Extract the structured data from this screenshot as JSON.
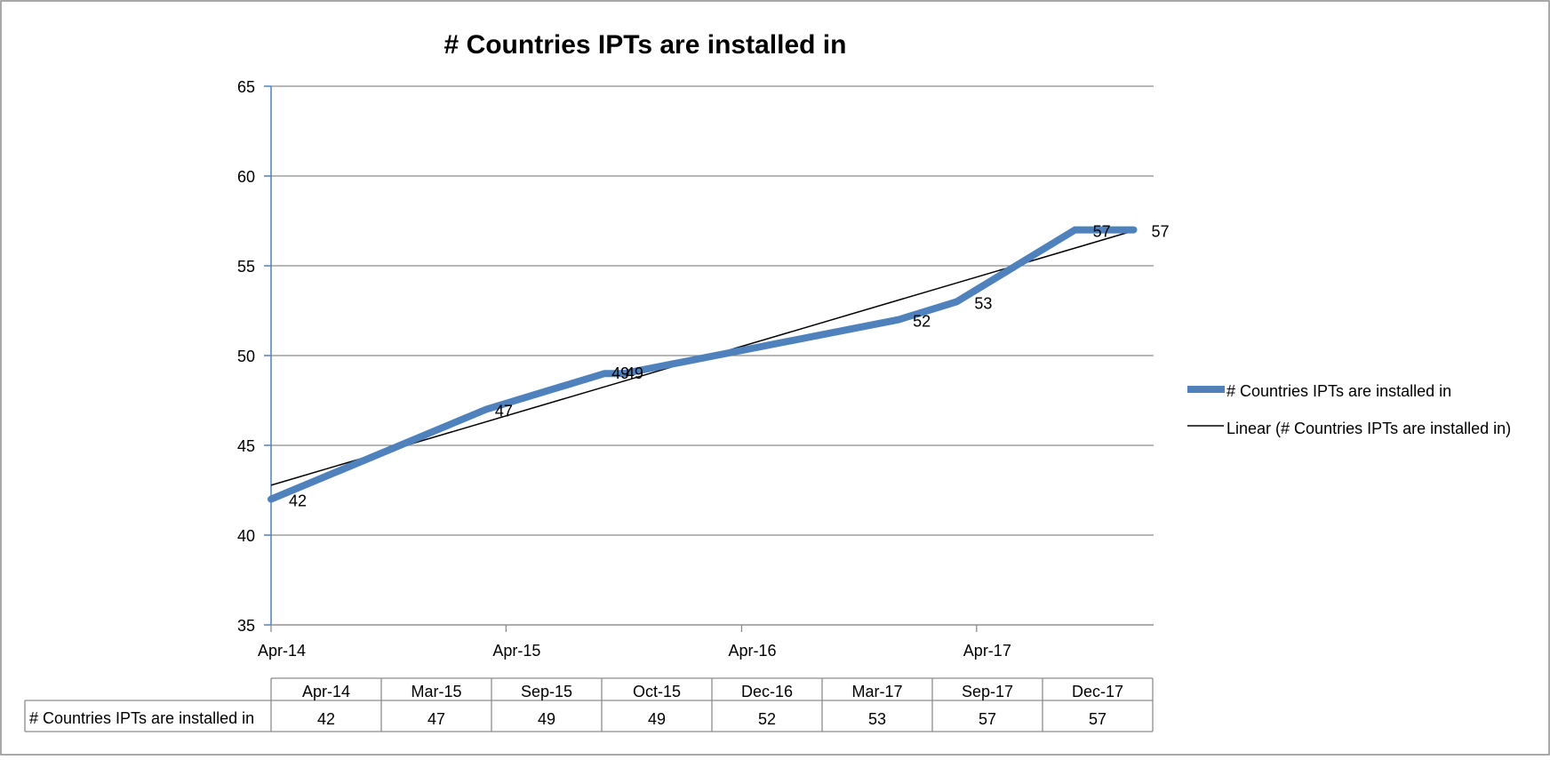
{
  "chart_data": {
    "type": "line",
    "title": "# Countries IPTs are installed in",
    "x_axis": {
      "tick_labels": [
        "Apr-14",
        "Apr-15",
        "Apr-16",
        "Apr-17"
      ],
      "tick_dates": [
        "2014-04-01",
        "2015-04-01",
        "2016-04-01",
        "2017-04-01"
      ],
      "range": [
        "2014-04-01",
        "2018-01-01"
      ]
    },
    "y_axis": {
      "range": [
        35,
        65
      ],
      "ticks": [
        35,
        40,
        45,
        50,
        55,
        60,
        65
      ],
      "gridlines": true
    },
    "series": [
      {
        "name": "# Countries IPTs are installed in",
        "color": "#4F81BD",
        "x": [
          "2014-04-01",
          "2015-03-01",
          "2015-09-01",
          "2015-10-01",
          "2016-12-01",
          "2017-03-01",
          "2017-09-01",
          "2017-12-01"
        ],
        "values": [
          42,
          47,
          49,
          49,
          52,
          53,
          57,
          57
        ],
        "data_labels": [
          "42",
          "47",
          "49",
          "49",
          "52",
          "53",
          "57",
          "57"
        ]
      }
    ],
    "trendline": {
      "name": "Linear (# Countries IPTs are installed in)",
      "type": "linear",
      "color": "#000000"
    },
    "legend": {
      "position": "right",
      "entries": [
        "# Countries IPTs are installed in",
        "Linear (# Countries IPTs are installed in)"
      ]
    },
    "data_table": {
      "row_label": "# Countries IPTs are installed in",
      "headers": [
        "Apr-14",
        "Mar-15",
        "Sep-15",
        "Oct-15",
        "Dec-16",
        "Mar-17",
        "Sep-17",
        "Dec-17"
      ],
      "values": [
        "42",
        "47",
        "49",
        "49",
        "52",
        "53",
        "57",
        "57"
      ]
    }
  }
}
